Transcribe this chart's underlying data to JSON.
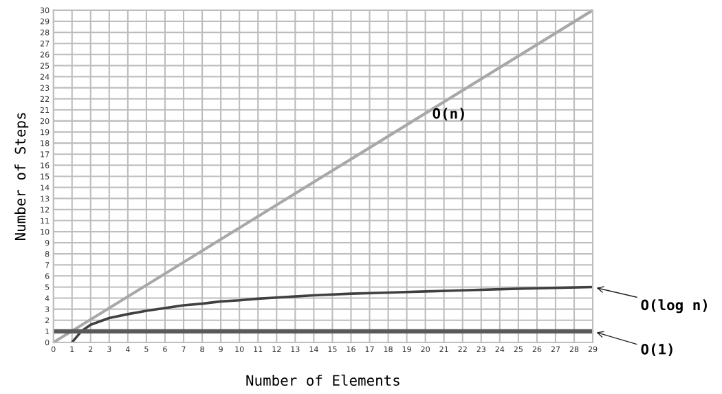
{
  "chart_data": {
    "type": "line",
    "xlabel": "Number of Elements",
    "ylabel": "Number of Steps",
    "xlim": [
      0,
      29
    ],
    "ylim": [
      0,
      30
    ],
    "xticks": [
      0,
      1,
      2,
      3,
      4,
      5,
      6,
      7,
      8,
      9,
      10,
      11,
      12,
      13,
      14,
      15,
      16,
      17,
      18,
      19,
      20,
      21,
      22,
      23,
      24,
      25,
      26,
      27,
      28,
      29
    ],
    "yticks": [
      0,
      1,
      2,
      3,
      4,
      5,
      6,
      7,
      8,
      9,
      10,
      11,
      12,
      13,
      14,
      15,
      16,
      17,
      18,
      19,
      20,
      21,
      22,
      23,
      24,
      25,
      26,
      27,
      28,
      29,
      30
    ],
    "grid": true,
    "legend": false,
    "marker": "none",
    "line_style": "solid",
    "series": [
      {
        "name": "O(n)",
        "color": "#a8a8a8",
        "x": [
          0,
          29
        ],
        "values": [
          0,
          30
        ]
      },
      {
        "name": "O(log n)",
        "color": "#404040",
        "x": [
          1,
          1.5,
          2,
          3,
          4,
          5,
          6,
          7,
          8,
          9,
          10,
          11,
          12,
          13,
          14,
          16,
          18,
          20,
          22,
          25,
          29
        ],
        "values": [
          0,
          1.0,
          1.6,
          2.2,
          2.55,
          2.85,
          3.1,
          3.35,
          3.5,
          3.7,
          3.8,
          3.95,
          4.05,
          4.15,
          4.25,
          4.4,
          4.5,
          4.6,
          4.7,
          4.85,
          5.0
        ]
      },
      {
        "name": "O(1)",
        "color": "#5a5a5a",
        "x": [
          0,
          29
        ],
        "values": [
          1,
          1
        ]
      }
    ]
  }
}
